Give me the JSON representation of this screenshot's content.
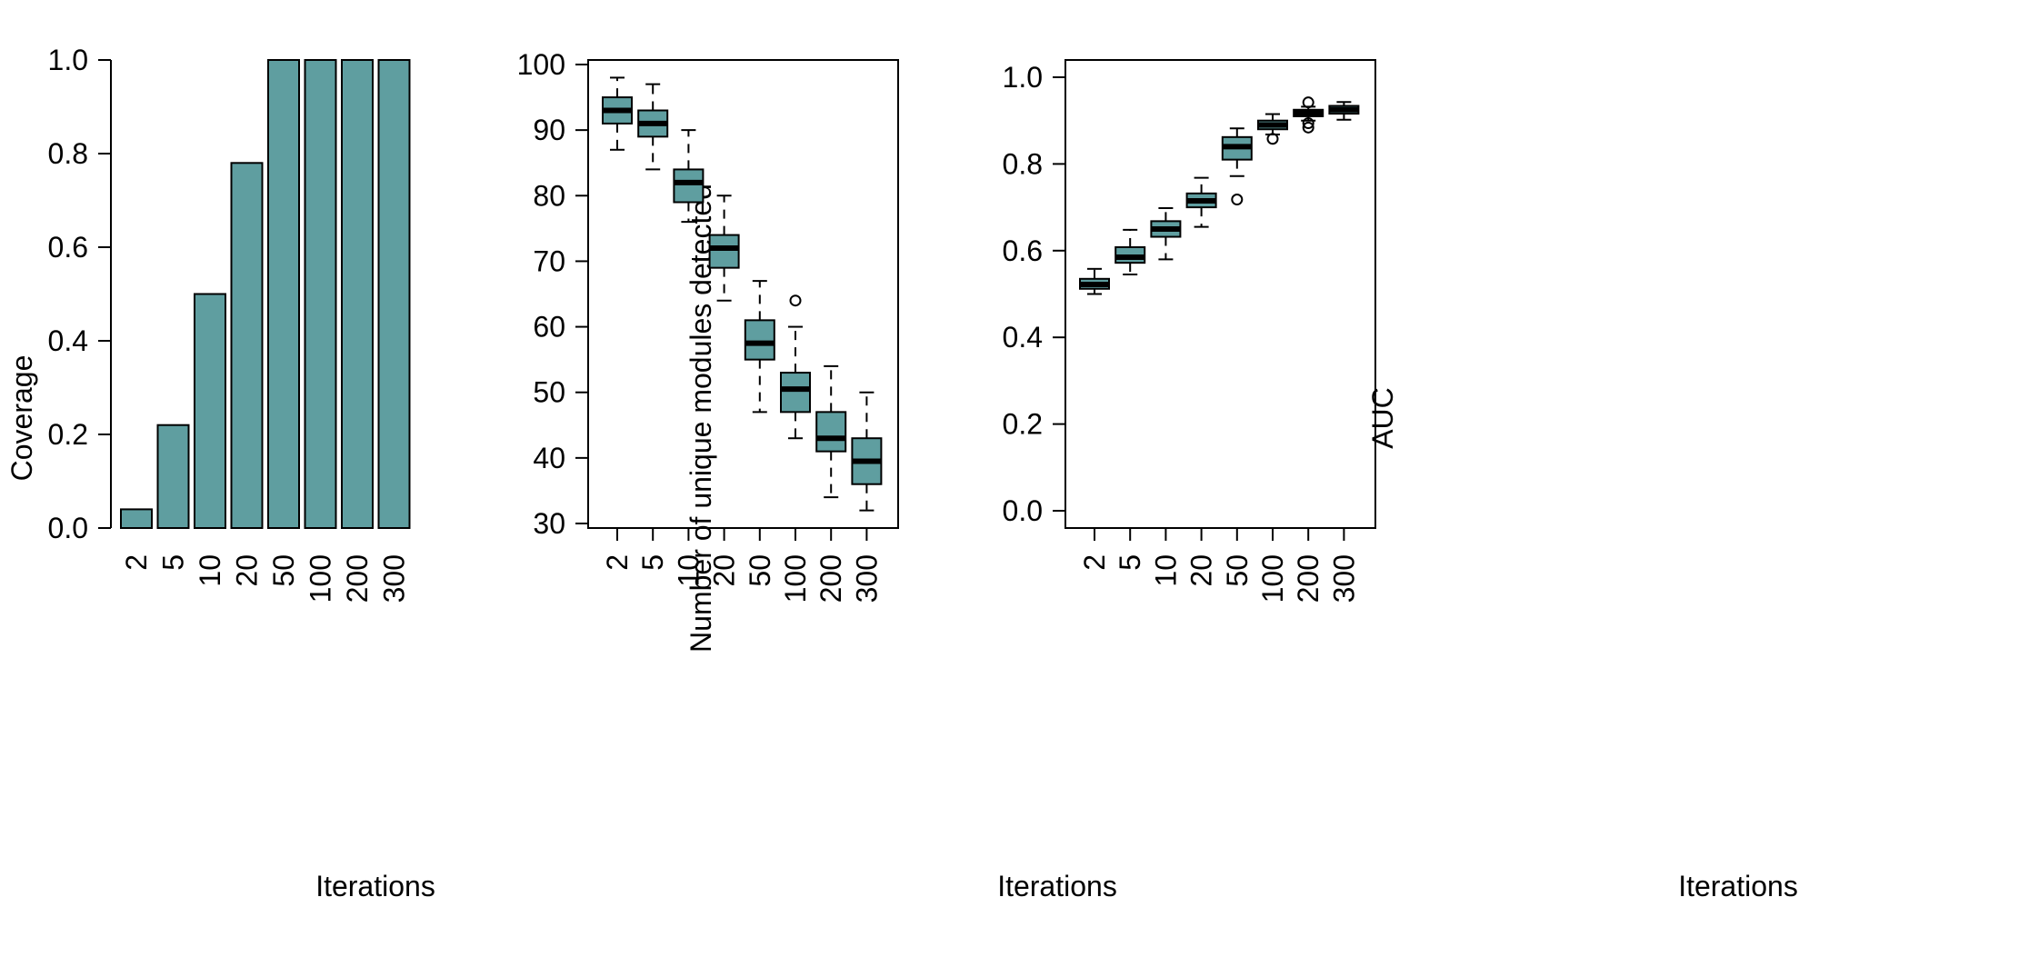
{
  "colors": {
    "fill": "#5f9ea0",
    "stroke": "#000000"
  },
  "chart_data": [
    {
      "type": "bar",
      "xlabel": "Iterations",
      "ylabel": "Coverage",
      "categories": [
        "2",
        "5",
        "10",
        "20",
        "50",
        "100",
        "200",
        "300"
      ],
      "values": [
        0.04,
        0.22,
        0.5,
        0.78,
        1.0,
        1.0,
        1.0,
        1.0
      ],
      "ylim": [
        0,
        1
      ],
      "yticks": [
        "0.0",
        "0.2",
        "0.4",
        "0.6",
        "0.8",
        "1.0"
      ],
      "grid": false
    },
    {
      "type": "box",
      "xlabel": "Iterations",
      "ylabel": "Number of unique modules detected",
      "categories": [
        "2",
        "5",
        "10",
        "20",
        "50",
        "100",
        "200",
        "300"
      ],
      "ylim": [
        30,
        100
      ],
      "yticks": [
        "30",
        "40",
        "50",
        "60",
        "70",
        "80",
        "90",
        "100"
      ],
      "boxes": [
        {
          "min": 87,
          "q1": 91,
          "median": 93,
          "q3": 95,
          "max": 98,
          "outliers": []
        },
        {
          "min": 84,
          "q1": 89,
          "median": 91,
          "q3": 93,
          "max": 97,
          "outliers": []
        },
        {
          "min": 76,
          "q1": 79,
          "median": 82,
          "q3": 84,
          "max": 90,
          "outliers": []
        },
        {
          "min": 64,
          "q1": 69,
          "median": 72,
          "q3": 74,
          "max": 80,
          "outliers": []
        },
        {
          "min": 47,
          "q1": 55,
          "median": 57.5,
          "q3": 61,
          "max": 67,
          "outliers": []
        },
        {
          "min": 43,
          "q1": 47,
          "median": 50.5,
          "q3": 53,
          "max": 60,
          "outliers": [
            64
          ]
        },
        {
          "min": 34,
          "q1": 41,
          "median": 43,
          "q3": 47,
          "max": 54,
          "outliers": []
        },
        {
          "min": 32,
          "q1": 36,
          "median": 39.5,
          "q3": 43,
          "max": 50,
          "outliers": []
        }
      ],
      "grid": false
    },
    {
      "type": "box",
      "xlabel": "Iterations",
      "ylabel": "AUC",
      "categories": [
        "2",
        "5",
        "10",
        "20",
        "50",
        "100",
        "200",
        "300"
      ],
      "ylim": [
        0,
        1
      ],
      "yticks": [
        "0.0",
        "0.2",
        "0.4",
        "0.6",
        "0.8",
        "1.0"
      ],
      "boxes": [
        {
          "min": 0.5,
          "q1": 0.512,
          "median": 0.522,
          "q3": 0.535,
          "max": 0.558,
          "outliers": []
        },
        {
          "min": 0.545,
          "q1": 0.572,
          "median": 0.585,
          "q3": 0.608,
          "max": 0.648,
          "outliers": []
        },
        {
          "min": 0.58,
          "q1": 0.632,
          "median": 0.65,
          "q3": 0.668,
          "max": 0.698,
          "outliers": []
        },
        {
          "min": 0.655,
          "q1": 0.7,
          "median": 0.715,
          "q3": 0.732,
          "max": 0.768,
          "outliers": []
        },
        {
          "min": 0.772,
          "q1": 0.81,
          "median": 0.84,
          "q3": 0.862,
          "max": 0.882,
          "outliers": [
            0.718
          ]
        },
        {
          "min": 0.868,
          "q1": 0.88,
          "median": 0.89,
          "q3": 0.9,
          "max": 0.915,
          "outliers": [
            0.858
          ]
        },
        {
          "min": 0.9,
          "q1": 0.91,
          "median": 0.918,
          "q3": 0.925,
          "max": 0.932,
          "outliers": [
            0.884,
            0.894,
            0.942
          ]
        },
        {
          "min": 0.902,
          "q1": 0.916,
          "median": 0.925,
          "q3": 0.934,
          "max": 0.943,
          "outliers": []
        }
      ],
      "grid": false
    }
  ]
}
